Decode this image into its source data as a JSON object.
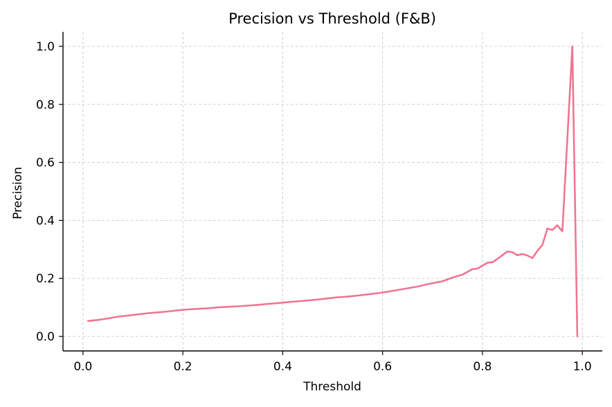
{
  "chart_data": {
    "type": "line",
    "title": "Precision vs Threshold (F&B)",
    "xlabel": "Threshold",
    "ylabel": "Precision",
    "xlim": [
      -0.04,
      1.04
    ],
    "ylim": [
      -0.05,
      1.05
    ],
    "xticks": [
      0.0,
      0.2,
      0.4,
      0.6,
      0.8,
      1.0
    ],
    "xtick_labels": [
      "0.0",
      "0.2",
      "0.4",
      "0.6",
      "0.8",
      "1.0"
    ],
    "yticks": [
      0.0,
      0.2,
      0.4,
      0.6,
      0.8,
      1.0
    ],
    "ytick_labels": [
      "0.0",
      "0.2",
      "0.4",
      "0.6",
      "0.8",
      "1.0"
    ],
    "grid": true,
    "legend": false,
    "series": [
      {
        "color": "#f07590",
        "x": [
          0.01,
          0.03,
          0.05,
          0.07,
          0.09,
          0.11,
          0.13,
          0.15,
          0.17,
          0.19,
          0.21,
          0.23,
          0.25,
          0.27,
          0.29,
          0.31,
          0.33,
          0.35,
          0.37,
          0.39,
          0.41,
          0.43,
          0.45,
          0.47,
          0.49,
          0.51,
          0.53,
          0.55,
          0.57,
          0.59,
          0.61,
          0.63,
          0.65,
          0.67,
          0.69,
          0.71,
          0.72,
          0.74,
          0.76,
          0.78,
          0.79,
          0.81,
          0.82,
          0.83,
          0.85,
          0.86,
          0.87,
          0.88,
          0.89,
          0.9,
          0.91,
          0.92,
          0.93,
          0.94,
          0.95,
          0.96,
          0.98,
          0.99
        ],
        "y": [
          0.053,
          0.057,
          0.062,
          0.068,
          0.072,
          0.076,
          0.08,
          0.083,
          0.086,
          0.09,
          0.093,
          0.095,
          0.097,
          0.1,
          0.102,
          0.104,
          0.106,
          0.109,
          0.112,
          0.115,
          0.118,
          0.121,
          0.124,
          0.127,
          0.131,
          0.135,
          0.137,
          0.141,
          0.145,
          0.149,
          0.154,
          0.16,
          0.166,
          0.172,
          0.18,
          0.187,
          0.19,
          0.203,
          0.213,
          0.232,
          0.234,
          0.254,
          0.256,
          0.267,
          0.293,
          0.29,
          0.28,
          0.284,
          0.279,
          0.27,
          0.295,
          0.315,
          0.372,
          0.367,
          0.383,
          0.362,
          1.0,
          0.0
        ]
      }
    ]
  }
}
